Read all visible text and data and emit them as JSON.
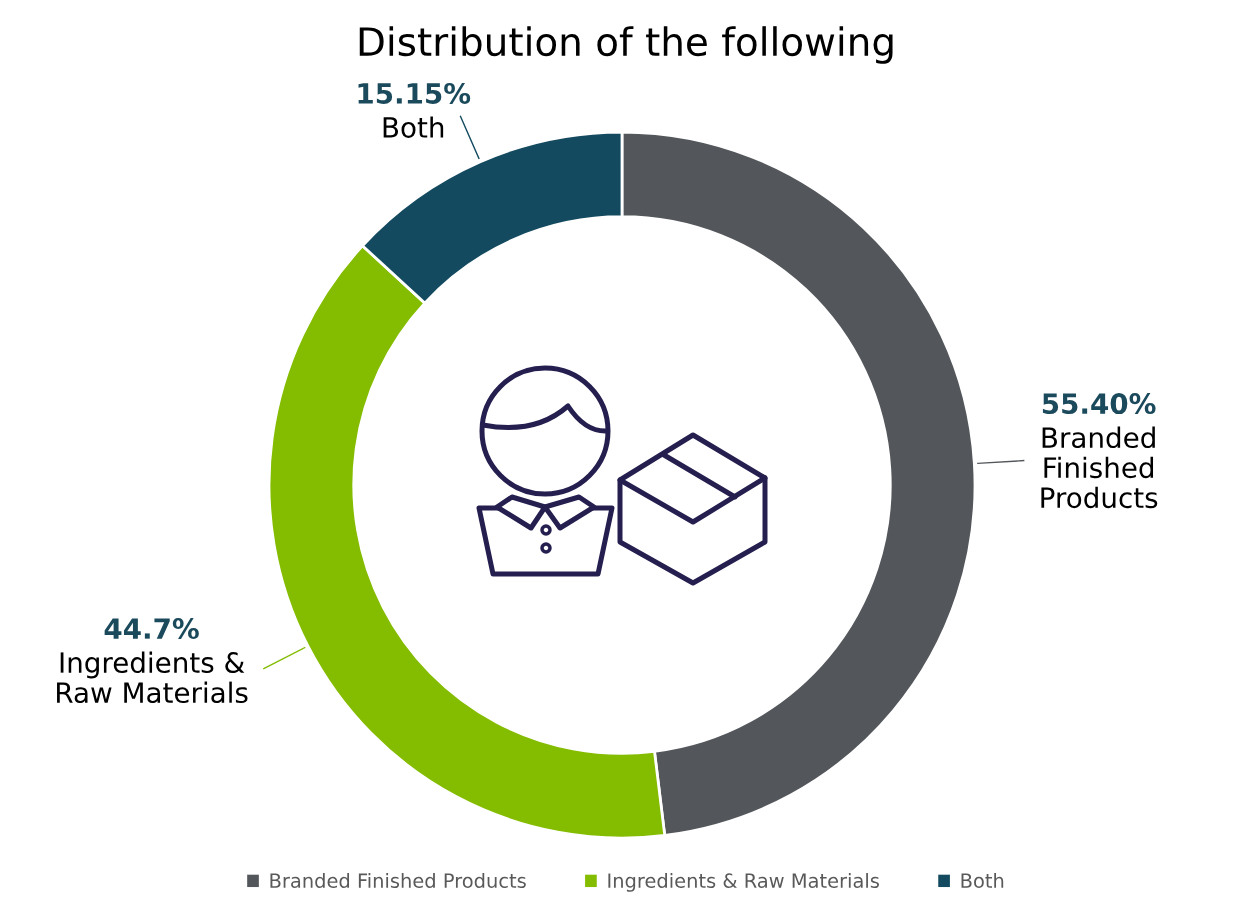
{
  "chart_data": {
    "type": "donut",
    "title": "Distribution of the following",
    "categories": [
      "Branded Finished Products",
      "Ingredients & Raw Materials",
      "Both"
    ],
    "values": [
      55.4,
      44.7,
      15.15
    ],
    "colors": [
      "#53565a",
      "#84bc00",
      "#134a5f"
    ],
    "value_labels": [
      "55.40%",
      "44.7%",
      "15.15%"
    ],
    "legend": "bottom"
  }
}
